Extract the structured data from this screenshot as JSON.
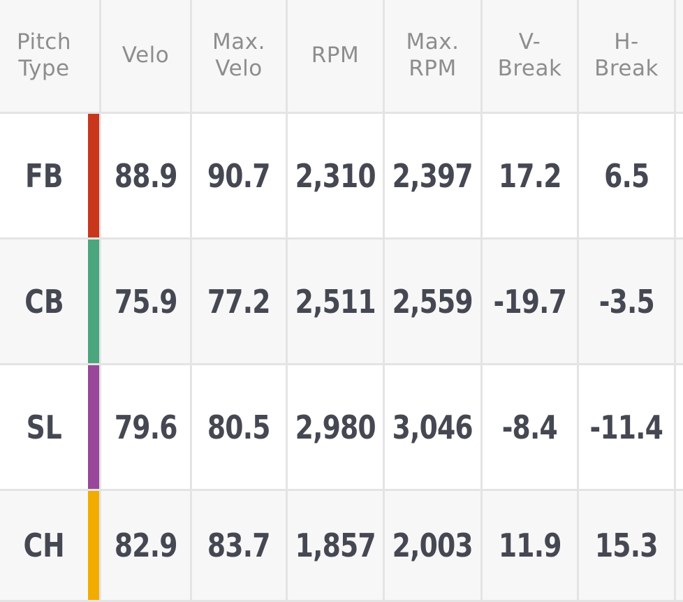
{
  "table": {
    "headers": {
      "pitch_type": "Pitch\nType",
      "velo": "Velo",
      "max_velo": "Max.\nVelo",
      "rpm": "RPM",
      "max_rpm": "Max.\nRPM",
      "v_break": "V-\nBreak",
      "h_break": "H-\nBreak"
    },
    "rows": [
      {
        "type": "FB",
        "color": "#c8361c",
        "velo": "88.9",
        "max_velo": "90.7",
        "rpm": "2,310",
        "max_rpm": "2,397",
        "v_break": "17.2",
        "h_break": "6.5"
      },
      {
        "type": "CB",
        "color": "#4ba57d",
        "velo": "75.9",
        "max_velo": "77.2",
        "rpm": "2,511",
        "max_rpm": "2,559",
        "v_break": "-19.7",
        "h_break": "-3.5"
      },
      {
        "type": "SL",
        "color": "#98479a",
        "velo": "79.6",
        "max_velo": "80.5",
        "rpm": "2,980",
        "max_rpm": "3,046",
        "v_break": "-8.4",
        "h_break": "-11.4"
      },
      {
        "type": "CH",
        "color": "#f2ac00",
        "velo": "82.9",
        "max_velo": "83.7",
        "rpm": "1,857",
        "max_rpm": "2,003",
        "v_break": "11.9",
        "h_break": "15.3"
      }
    ]
  }
}
